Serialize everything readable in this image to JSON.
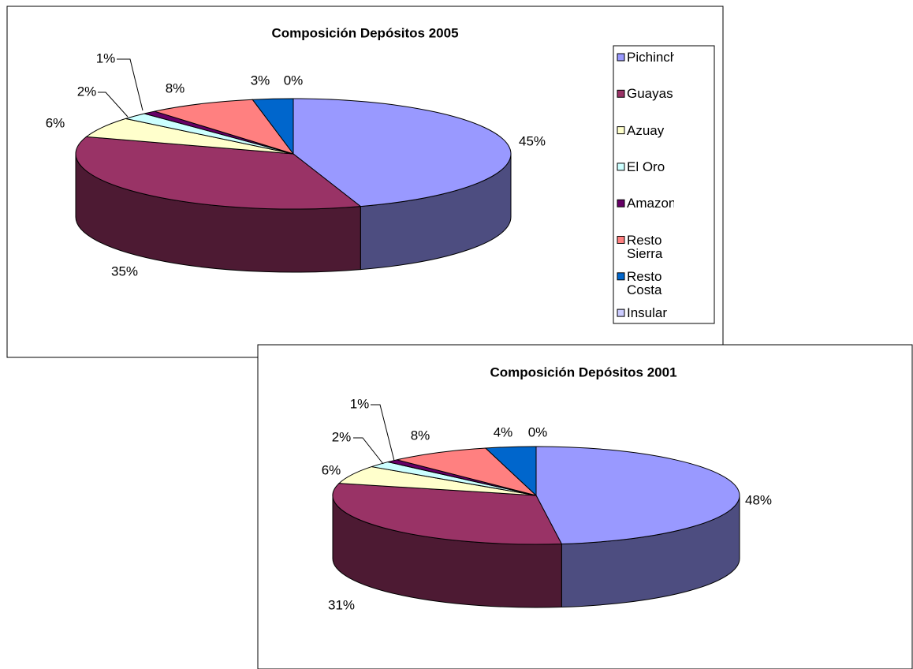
{
  "chart_data": [
    {
      "type": "pie",
      "title": "Composición Depósitos 2005",
      "categories": [
        "Pichincha",
        "Guayas",
        "Azuay",
        "El Oro",
        "Amazonia",
        "Resto Sierra",
        "Resto Costa",
        "Insular"
      ],
      "values": [
        45,
        35,
        6,
        2,
        1,
        8,
        3,
        0
      ],
      "value_labels": [
        "45%",
        "35%",
        "6%",
        "2%",
        "1%",
        "8%",
        "3%",
        "0%"
      ],
      "colors": [
        "#9999ff",
        "#993366",
        "#ffffcc",
        "#ccffff",
        "#660066",
        "#ff8080",
        "#0066cc",
        "#ccccff"
      ],
      "legend": "right"
    },
    {
      "type": "pie",
      "title": "Composición Depósitos 2001",
      "values": [
        48,
        31,
        6,
        2,
        1,
        8,
        4,
        0
      ],
      "value_labels": [
        "48%",
        "31%",
        "6%",
        "2%",
        "1%",
        "8%",
        "4%",
        "0%"
      ],
      "colors": [
        "#9999ff",
        "#993366",
        "#ffffcc",
        "#ccffff",
        "#660066",
        "#ff8080",
        "#0066cc",
        "#ccccff"
      ]
    }
  ]
}
